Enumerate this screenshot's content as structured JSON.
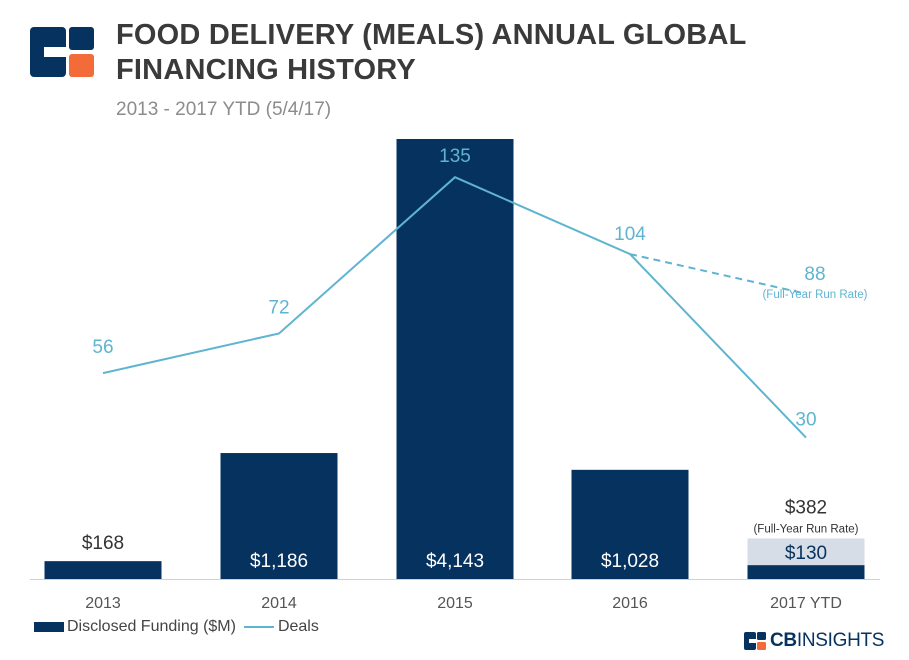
{
  "header": {
    "title": "FOOD DELIVERY (MEALS) ANNUAL GLOBAL FINANCING HISTORY",
    "subtitle": "2013 - 2017 YTD (5/4/17)"
  },
  "legend": {
    "funding_label": "Disclosed Funding ($M)",
    "deals_label": "Deals"
  },
  "brand": {
    "prefix": "CB",
    "suffix": "INSIGHTS"
  },
  "colors": {
    "bar": "#06325f",
    "bar_run_rate": "#d6dde6",
    "line": "#5fb4d0",
    "label_light": "#ffffff",
    "label_dark": "#333333",
    "logo_orange": "#f26b38"
  },
  "chart_data": {
    "type": "bar",
    "categories": [
      "2013",
      "2014",
      "2015",
      "2016",
      "2017 YTD"
    ],
    "series": [
      {
        "name": "Disclosed Funding ($M)",
        "type": "bar",
        "values": [
          168,
          1186,
          4143,
          1028,
          130
        ],
        "labels": [
          "$168",
          "$1,186",
          "$4,143",
          "$1,028",
          "$130"
        ]
      },
      {
        "name": "Deals",
        "type": "line",
        "values": [
          56,
          72,
          135,
          104,
          30
        ],
        "labels": [
          "56",
          "72",
          "135",
          "104",
          "30"
        ]
      }
    ],
    "run_rate": {
      "funding_value": 382,
      "funding_label": "$382",
      "funding_note": "(Full-Year Run Rate)",
      "deals_value": 88,
      "deals_label": "88",
      "deals_note": "(Full-Year Run Rate)"
    },
    "ylim_funding": [
      0,
      4143
    ],
    "ylim_deals": [
      0,
      135
    ],
    "grid": false,
    "legend_position": "bottom-left"
  }
}
